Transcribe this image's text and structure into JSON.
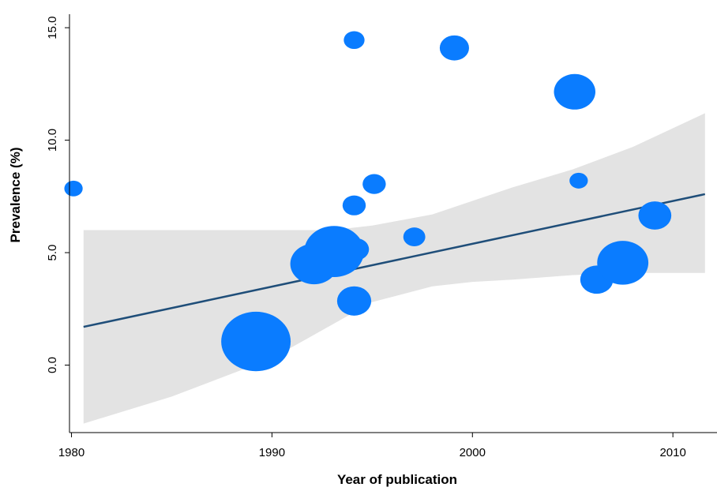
{
  "chart_data": {
    "type": "scatter",
    "title": "",
    "xlabel": "Year of publication",
    "ylabel": "Prevalence (%)",
    "xlim": [
      1979.9,
      2012.2
    ],
    "ylim": [
      -3.0,
      15.6
    ],
    "x_ticks": [
      1980,
      1990,
      2000,
      2010
    ],
    "y_ticks": [
      0.0,
      5.0,
      10.0,
      15.0
    ],
    "x_tick_labels": [
      "1980",
      "1990",
      "2000",
      "2010"
    ],
    "y_tick_labels": [
      "0.0",
      "5.0",
      "10.0",
      "15.0"
    ],
    "grid": false,
    "legend": "none",
    "colors": {
      "points": "#0a7cff",
      "fit_line": "#1f4e79",
      "confidence_band": "#e3e3e3",
      "axes": "#000000"
    },
    "points": [
      {
        "x": 1980.1,
        "y": 7.85,
        "weight": 0.6
      },
      {
        "x": 1989.2,
        "y": 1.05,
        "weight": 4.8
      },
      {
        "x": 1992.1,
        "y": 4.5,
        "weight": 3.0
      },
      {
        "x": 1993.1,
        "y": 5.05,
        "weight": 4.0
      },
      {
        "x": 1994.1,
        "y": 14.45,
        "weight": 0.8
      },
      {
        "x": 1994.1,
        "y": 7.1,
        "weight": 1.0
      },
      {
        "x": 1994.2,
        "y": 5.15,
        "weight": 1.2
      },
      {
        "x": 1994.1,
        "y": 2.85,
        "weight": 1.9
      },
      {
        "x": 1995.1,
        "y": 8.05,
        "weight": 1.0
      },
      {
        "x": 1997.1,
        "y": 5.7,
        "weight": 0.9
      },
      {
        "x": 1999.1,
        "y": 14.1,
        "weight": 1.5
      },
      {
        "x": 2005.1,
        "y": 12.15,
        "weight": 2.5
      },
      {
        "x": 2005.3,
        "y": 8.2,
        "weight": 0.6
      },
      {
        "x": 2006.2,
        "y": 3.8,
        "weight": 1.8
      },
      {
        "x": 2007.5,
        "y": 4.55,
        "weight": 3.3
      },
      {
        "x": 2009.1,
        "y": 6.65,
        "weight": 1.8
      }
    ],
    "fit_line": {
      "x": [
        1980.6,
        2011.6
      ],
      "y": [
        1.7,
        7.6
      ]
    },
    "confidence_band": {
      "x": [
        1980.6,
        1985,
        1990,
        1993,
        1995,
        1998,
        2000,
        2002,
        2005,
        2008,
        2011.6
      ],
      "lower": [
        -2.6,
        -1.4,
        0.3,
        1.8,
        2.8,
        3.5,
        3.7,
        3.8,
        4.0,
        4.1,
        4.1
      ],
      "upper": [
        6.0,
        6.0,
        6.0,
        6.0,
        6.2,
        6.7,
        7.3,
        7.9,
        8.7,
        9.7,
        11.2
      ]
    }
  }
}
